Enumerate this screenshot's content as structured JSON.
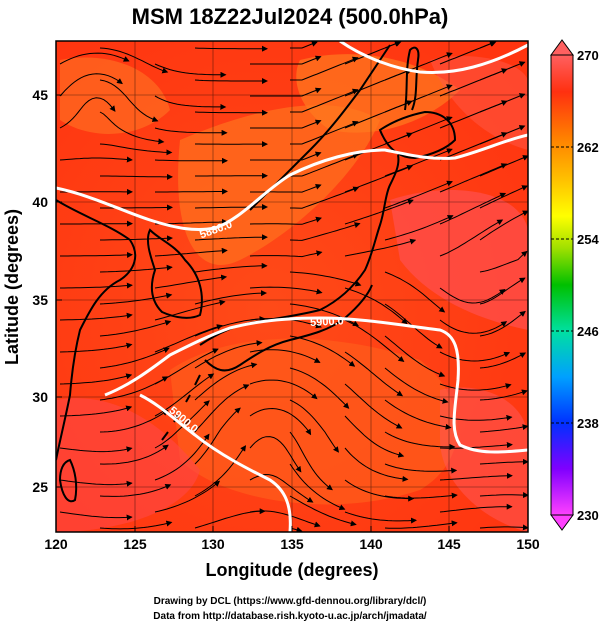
{
  "title": "MSM 18Z22Jul2024 (500.0hPa)",
  "x_axis": {
    "label": "Longitude (degrees)",
    "ticks": [
      "120",
      "125",
      "130",
      "135",
      "140",
      "145",
      "150"
    ],
    "range": [
      120,
      150
    ]
  },
  "y_axis": {
    "label": "Latitude  (degrees)",
    "ticks": [
      "25",
      "30",
      "35",
      "40",
      "45"
    ],
    "range": [
      22.4,
      47.6
    ]
  },
  "colorbar": {
    "ticks": [
      "270",
      "262",
      "254",
      "246",
      "238",
      "230"
    ],
    "range": [
      230,
      270
    ],
    "colors": [
      "#ff40ff",
      "#c000ff",
      "#0000ff",
      "#00a0ff",
      "#00e0a0",
      "#00c000",
      "#a0e000",
      "#ffff00",
      "#ffc000",
      "#ff8000",
      "#ff3000",
      "#ff6060"
    ]
  },
  "contours": {
    "label_5880": "5880.0",
    "label_5900": "5900.0"
  },
  "credits": {
    "line1": "Drawing by DCL (https://www.gfd-dennou.org/library/dcl/)",
    "line2": "Data from http://database.rish.kyoto-u.ac.jp/arch/jmadata/"
  }
}
